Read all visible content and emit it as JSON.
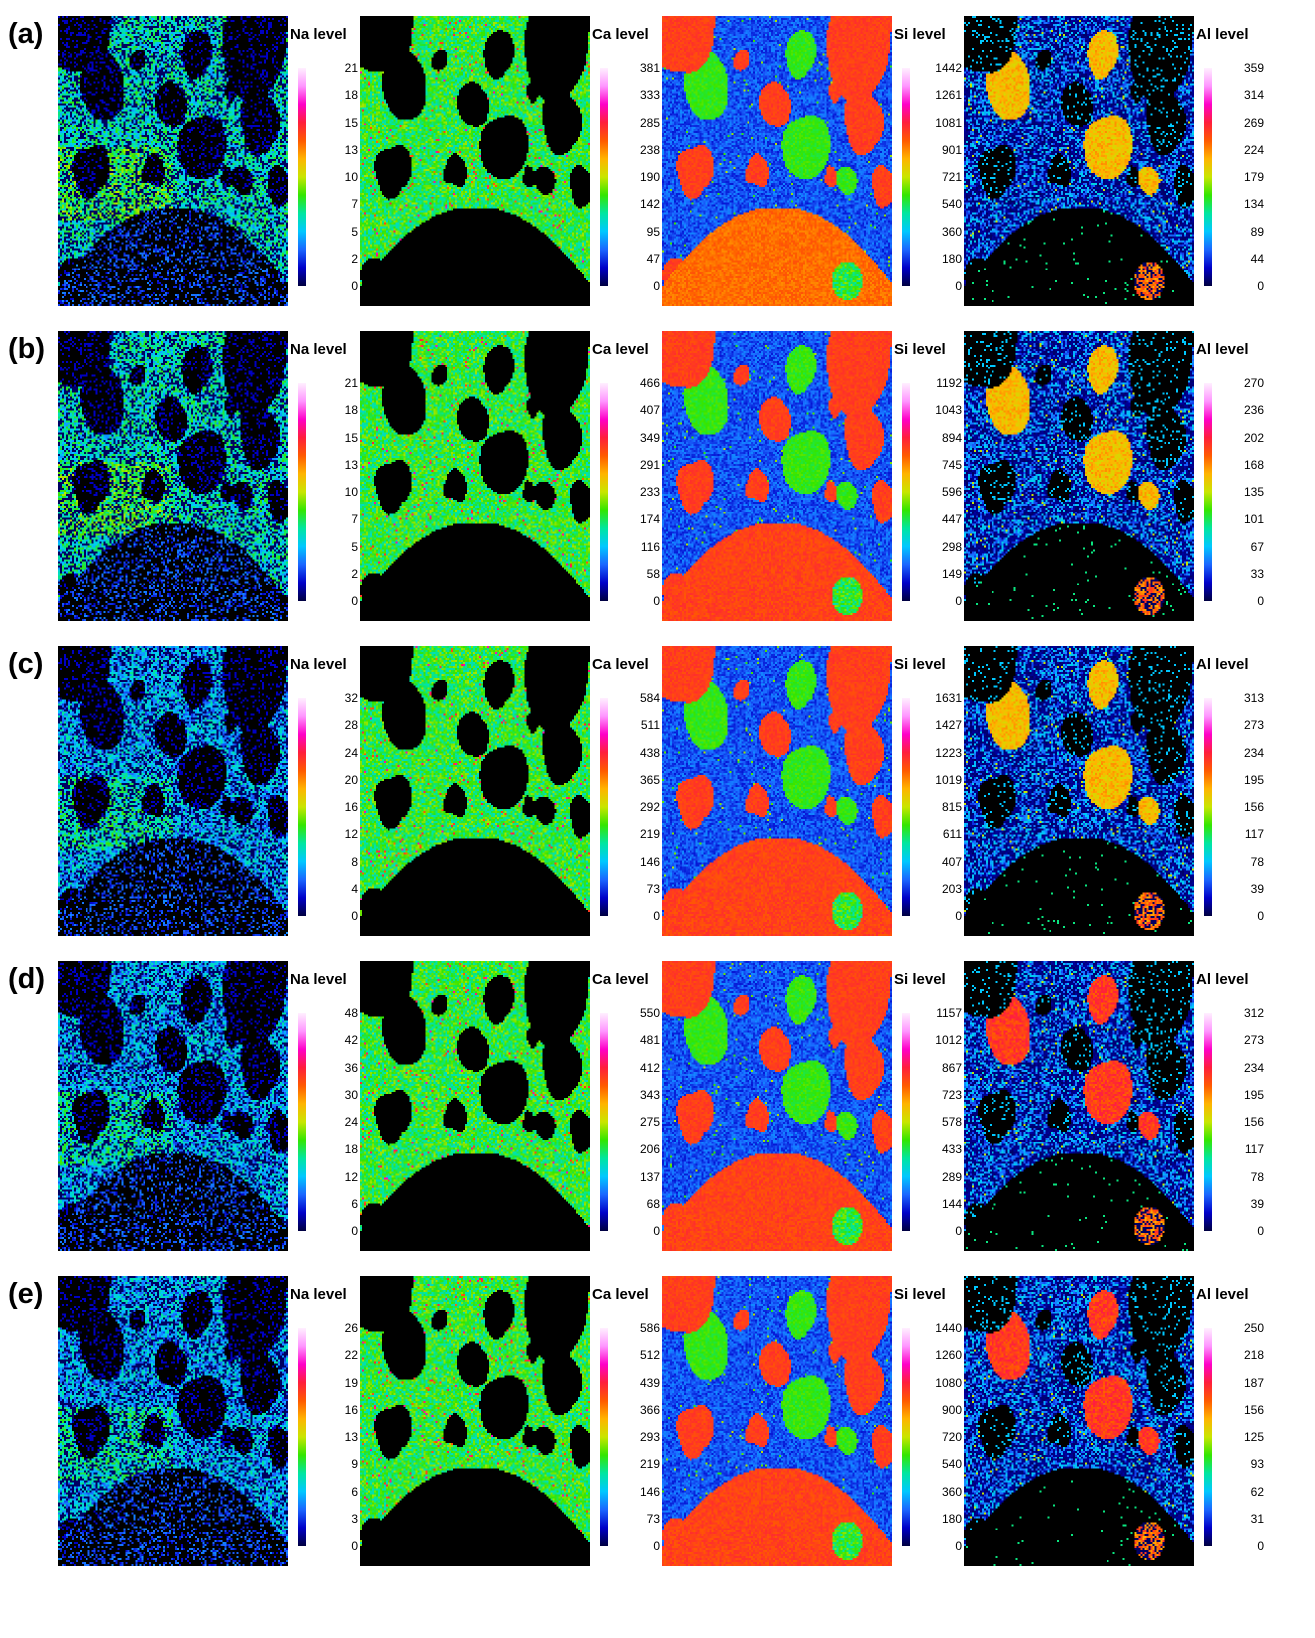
{
  "figure": {
    "colormap": [
      "#000040",
      "#0000c8",
      "#1a66ff",
      "#00c8ff",
      "#00e6a0",
      "#33e600",
      "#c8e600",
      "#ffb400",
      "#ff5a00",
      "#ff1e3c",
      "#ff00c8",
      "#ff96ff",
      "#fff0ff"
    ],
    "panels": [
      {
        "label": "(a)",
        "maps": [
          {
            "element": "Na",
            "title": "Na level",
            "ticks": [
              "21",
              "18",
              "15",
              "13",
              "10",
              "7",
              "5",
              "2",
              "0"
            ]
          },
          {
            "element": "Ca",
            "title": "Ca level",
            "ticks": [
              "381",
              "333",
              "285",
              "238",
              "190",
              "142",
              "95",
              "47",
              "0"
            ]
          },
          {
            "element": "Si",
            "title": "Si level",
            "ticks": [
              "1442",
              "1261",
              "1081",
              "901",
              "721",
              "540",
              "360",
              "180",
              "0"
            ]
          },
          {
            "element": "Al",
            "title": "Al level",
            "ticks": [
              "359",
              "314",
              "269",
              "224",
              "179",
              "134",
              "89",
              "44",
              "0"
            ]
          }
        ]
      },
      {
        "label": "(b)",
        "maps": [
          {
            "element": "Na",
            "title": "Na level",
            "ticks": [
              "21",
              "18",
              "15",
              "13",
              "10",
              "7",
              "5",
              "2",
              "0"
            ]
          },
          {
            "element": "Ca",
            "title": "Ca level",
            "ticks": [
              "466",
              "407",
              "349",
              "291",
              "233",
              "174",
              "116",
              "58",
              "0"
            ]
          },
          {
            "element": "Si",
            "title": "Si level",
            "ticks": [
              "1192",
              "1043",
              "894",
              "745",
              "596",
              "447",
              "298",
              "149",
              "0"
            ]
          },
          {
            "element": "Al",
            "title": "Al level",
            "ticks": [
              "270",
              "236",
              "202",
              "168",
              "135",
              "101",
              "67",
              "33",
              "0"
            ]
          }
        ]
      },
      {
        "label": "(c)",
        "maps": [
          {
            "element": "Na",
            "title": "Na level",
            "ticks": [
              "32",
              "28",
              "24",
              "20",
              "16",
              "12",
              "8",
              "4",
              "0"
            ]
          },
          {
            "element": "Ca",
            "title": "Ca level",
            "ticks": [
              "584",
              "511",
              "438",
              "365",
              "292",
              "219",
              "146",
              "73",
              "0"
            ]
          },
          {
            "element": "Si",
            "title": "Si level",
            "ticks": [
              "1631",
              "1427",
              "1223",
              "1019",
              "815",
              "611",
              "407",
              "203",
              "0"
            ]
          },
          {
            "element": "Al",
            "title": "Al level",
            "ticks": [
              "313",
              "273",
              "234",
              "195",
              "156",
              "117",
              "78",
              "39",
              "0"
            ]
          }
        ]
      },
      {
        "label": "(d)",
        "maps": [
          {
            "element": "Na",
            "title": "Na level",
            "ticks": [
              "48",
              "42",
              "36",
              "30",
              "24",
              "18",
              "12",
              "6",
              "0"
            ]
          },
          {
            "element": "Ca",
            "title": "Ca level",
            "ticks": [
              "550",
              "481",
              "412",
              "343",
              "275",
              "206",
              "137",
              "68",
              "0"
            ]
          },
          {
            "element": "Si",
            "title": "Si level",
            "ticks": [
              "1157",
              "1012",
              "867",
              "723",
              "578",
              "433",
              "289",
              "144",
              "0"
            ]
          },
          {
            "element": "Al",
            "title": "Al level",
            "ticks": [
              "312",
              "273",
              "234",
              "195",
              "156",
              "117",
              "78",
              "39",
              "0"
            ]
          }
        ]
      },
      {
        "label": "(e)",
        "maps": [
          {
            "element": "Na",
            "title": "Na level",
            "ticks": [
              "26",
              "22",
              "19",
              "16",
              "13",
              "9",
              "6",
              "3",
              "0"
            ]
          },
          {
            "element": "Ca",
            "title": "Ca level",
            "ticks": [
              "586",
              "512",
              "439",
              "366",
              "293",
              "219",
              "146",
              "73",
              "0"
            ]
          },
          {
            "element": "Si",
            "title": "Si level",
            "ticks": [
              "1440",
              "1260",
              "1080",
              "900",
              "720",
              "540",
              "360",
              "180",
              "0"
            ]
          },
          {
            "element": "Al",
            "title": "Al level",
            "ticks": [
              "250",
              "218",
              "187",
              "156",
              "125",
              "93",
              "62",
              "31",
              "0"
            ]
          }
        ]
      }
    ]
  }
}
